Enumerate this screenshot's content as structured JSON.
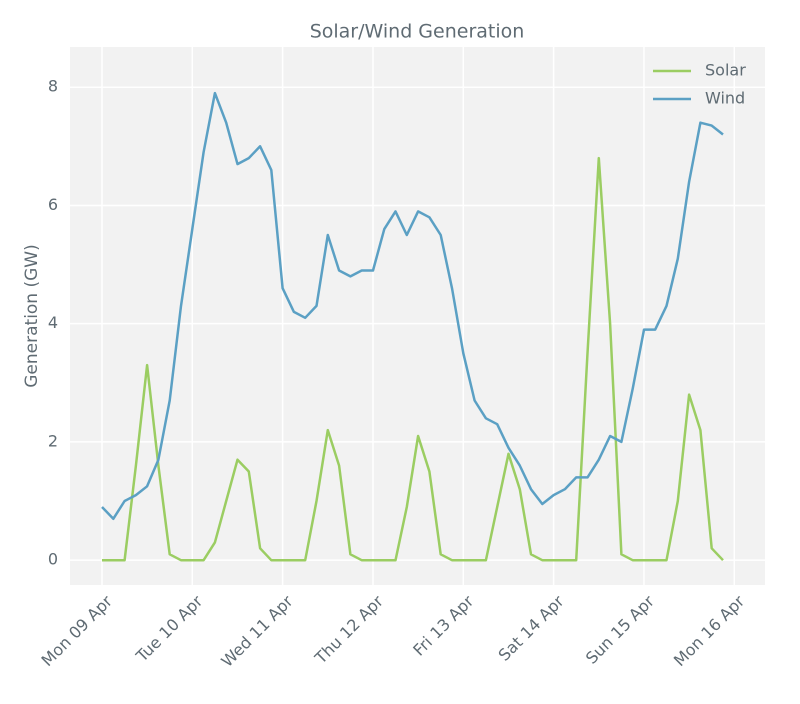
{
  "chart_data": {
    "type": "line",
    "title": "Solar/Wind Generation",
    "ylabel": "Generation (GW)",
    "x": [
      0,
      0.125,
      0.25,
      0.375,
      0.5,
      0.625,
      0.75,
      0.875,
      1,
      1.125,
      1.25,
      1.375,
      1.5,
      1.625,
      1.75,
      1.875,
      2,
      2.125,
      2.25,
      2.375,
      2.5,
      2.625,
      2.75,
      2.875,
      3,
      3.125,
      3.25,
      3.375,
      3.5,
      3.625,
      3.75,
      3.875,
      4,
      4.125,
      4.25,
      4.375,
      4.5,
      4.625,
      4.75,
      4.875,
      5,
      5.125,
      5.25,
      5.375,
      5.5,
      5.625,
      5.75,
      5.875,
      6,
      6.125,
      6.25,
      6.375,
      6.5,
      6.625,
      6.75,
      6.875
    ],
    "series": [
      {
        "name": "Solar",
        "color": "#9bcd62",
        "values": [
          0,
          0,
          0,
          1.6,
          3.3,
          1.6,
          0.1,
          0,
          0,
          0,
          0.3,
          1.0,
          1.7,
          1.5,
          0.2,
          0,
          0,
          0,
          0,
          1.0,
          2.2,
          1.6,
          0.1,
          0,
          0,
          0,
          0,
          0.9,
          2.1,
          1.5,
          0.1,
          0,
          0,
          0,
          0,
          0.9,
          1.8,
          1.2,
          0.1,
          0,
          0,
          0,
          0,
          3.5,
          6.8,
          4.0,
          0.1,
          0,
          0,
          0,
          0,
          1.0,
          2.8,
          2.2,
          0.2,
          0
        ]
      },
      {
        "name": "Wind",
        "color": "#5ba0c4",
        "values": [
          0.9,
          0.7,
          1.0,
          1.1,
          1.25,
          1.7,
          2.7,
          4.3,
          5.6,
          6.9,
          7.9,
          7.4,
          6.7,
          6.8,
          7.0,
          6.6,
          4.6,
          4.2,
          4.1,
          4.3,
          5.5,
          4.9,
          4.8,
          4.9,
          4.9,
          5.6,
          5.9,
          5.5,
          5.9,
          5.8,
          5.5,
          4.6,
          3.5,
          2.7,
          2.4,
          2.3,
          1.9,
          1.6,
          1.2,
          0.95,
          1.1,
          1.2,
          1.4,
          1.4,
          1.7,
          2.1,
          2.0,
          2.9,
          3.9,
          3.9,
          4.3,
          5.1,
          6.4,
          7.4,
          7.35,
          7.2
        ]
      }
    ],
    "xlim": [
      -0.354,
      7.34
    ],
    "xticks": [
      {
        "value": 0,
        "label": "Mon 09 Apr"
      },
      {
        "value": 1,
        "label": "Tue 10 Apr"
      },
      {
        "value": 2,
        "label": "Wed 11 Apr"
      },
      {
        "value": 3,
        "label": "Thu 12 Apr"
      },
      {
        "value": 4,
        "label": "Fri 13 Apr"
      },
      {
        "value": 5,
        "label": "Sat 14 Apr"
      },
      {
        "value": 6,
        "label": "Sun 15 Apr"
      },
      {
        "value": 7,
        "label": "Mon 16 Apr"
      }
    ],
    "ylim": [
      -0.42,
      8.68
    ],
    "yticks": [
      0,
      2,
      4,
      6,
      8
    ],
    "grid": true,
    "legend": "upper right"
  }
}
